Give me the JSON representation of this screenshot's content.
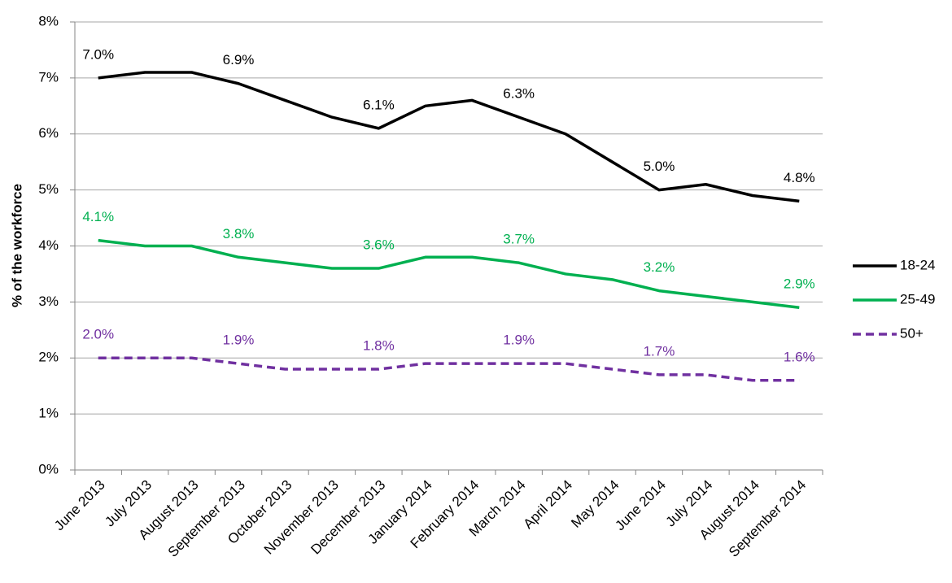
{
  "chart_data": {
    "type": "line",
    "y_label": "% of the workforce",
    "categories": [
      "June 2013",
      "July 2013",
      "August 2013",
      "September 2013",
      "October 2013",
      "November 2013",
      "December 2013",
      "January 2014",
      "February 2014",
      "March 2014",
      "April 2014",
      "May 2014",
      "June 2014",
      "July 2014",
      "August 2014",
      "September 2014"
    ],
    "series": [
      {
        "name": "18-24",
        "color": "#000000",
        "dash": false,
        "values": [
          7.0,
          7.1,
          7.1,
          6.9,
          6.6,
          6.3,
          6.1,
          6.5,
          6.6,
          6.3,
          6.0,
          5.5,
          5.0,
          5.1,
          4.9,
          4.8
        ],
        "value_labels": [
          "7.0%",
          null,
          null,
          "6.9%",
          null,
          null,
          "6.1%",
          null,
          null,
          "6.3%",
          null,
          null,
          "5.0%",
          null,
          null,
          "4.8%"
        ]
      },
      {
        "name": "25-49",
        "color": "#00b050",
        "dash": false,
        "values": [
          4.1,
          4.0,
          4.0,
          3.8,
          3.7,
          3.6,
          3.6,
          3.8,
          3.8,
          3.7,
          3.5,
          3.4,
          3.2,
          3.1,
          3.0,
          2.9
        ],
        "value_labels": [
          "4.1%",
          null,
          null,
          "3.8%",
          null,
          null,
          "3.6%",
          null,
          null,
          "3.7%",
          null,
          null,
          "3.2%",
          null,
          null,
          "2.9%"
        ]
      },
      {
        "name": "50+",
        "color": "#7030a0",
        "dash": true,
        "values": [
          2.0,
          2.0,
          2.0,
          1.9,
          1.8,
          1.8,
          1.8,
          1.9,
          1.9,
          1.9,
          1.9,
          1.8,
          1.7,
          1.7,
          1.6,
          1.6
        ],
        "value_labels": [
          "2.0%",
          null,
          null,
          "1.9%",
          null,
          null,
          "1.8%",
          null,
          null,
          "1.9%",
          null,
          null,
          "1.7%",
          null,
          null,
          "1.6%"
        ]
      }
    ],
    "ylim": [
      0,
      8
    ],
    "yticks": [
      {
        "value": 0,
        "label": "0%"
      },
      {
        "value": 1,
        "label": "1%"
      },
      {
        "value": 2,
        "label": "2%"
      },
      {
        "value": 3,
        "label": "3%"
      },
      {
        "value": 4,
        "label": "4%"
      },
      {
        "value": 5,
        "label": "5%"
      },
      {
        "value": 6,
        "label": "6%"
      },
      {
        "value": 7,
        "label": "7%"
      },
      {
        "value": 8,
        "label": "8%"
      }
    ],
    "grid": true,
    "legend": "right"
  }
}
